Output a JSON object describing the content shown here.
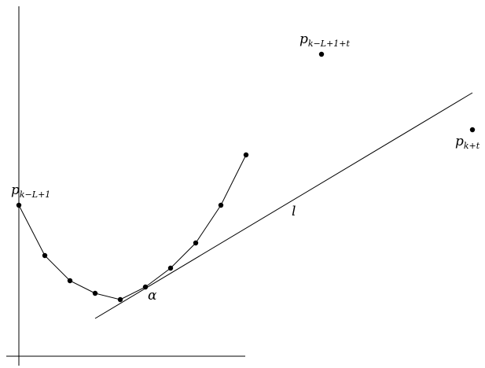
{
  "labels": {
    "p_start": {
      "base": "p",
      "sub": "k−L+1"
    },
    "p_mid": {
      "base": "p",
      "sub": "k−L+1+t"
    },
    "p_end": {
      "base": "p",
      "sub": "k+t"
    },
    "line": "l",
    "angle": "α"
  }
}
